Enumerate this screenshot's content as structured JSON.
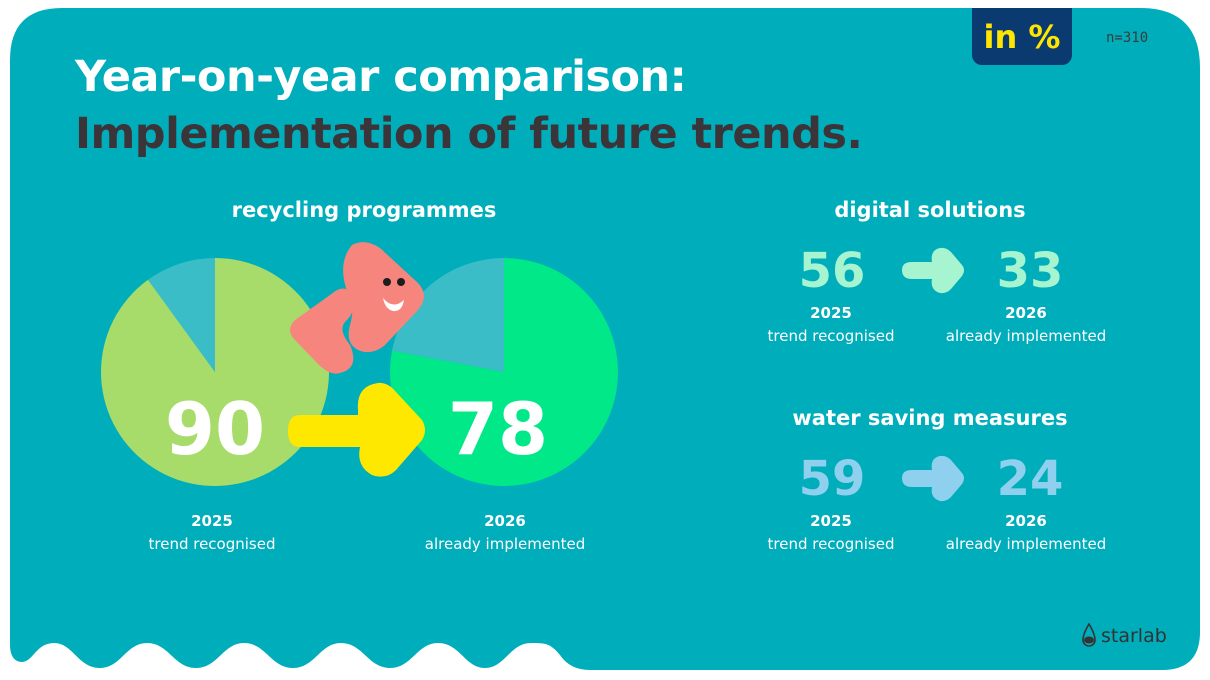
{
  "header": {
    "title_line1": "Year-on-year comparison:",
    "title_line2": "Implementation of future trends.",
    "unit_badge": "in %",
    "sample_size": "n=310"
  },
  "colors": {
    "background": "#00adbb",
    "recycling_2025": "#a8dc6a",
    "recycling_2026": "#00e887",
    "remainder": "#3bbdc8",
    "arrow_recycling": "#ffe800",
    "digital": "#a6f4d0",
    "water": "#8fd0ee",
    "mascot": "#f6857e",
    "badge": "#0b3a70"
  },
  "recycling": {
    "title": "recycling programmes",
    "value_2025": "90",
    "value_2026": "78",
    "pct_2025": 90,
    "pct_2026": 78,
    "year_2025": "2025",
    "label_2025": "trend recognised",
    "year_2026": "2026",
    "label_2026": "already implemented"
  },
  "digital": {
    "title": "digital solutions",
    "value_2025": "56",
    "value_2026": "33",
    "year_2025": "2025",
    "label_2025": "trend recognised",
    "year_2026": "2026",
    "label_2026": "already implemented"
  },
  "water": {
    "title": "water saving measures",
    "value_2025": "59",
    "value_2026": "24",
    "year_2025": "2025",
    "label_2025": "trend recognised",
    "year_2026": "2026",
    "label_2026": "already implemented"
  },
  "logo": {
    "text": "starlab"
  }
}
